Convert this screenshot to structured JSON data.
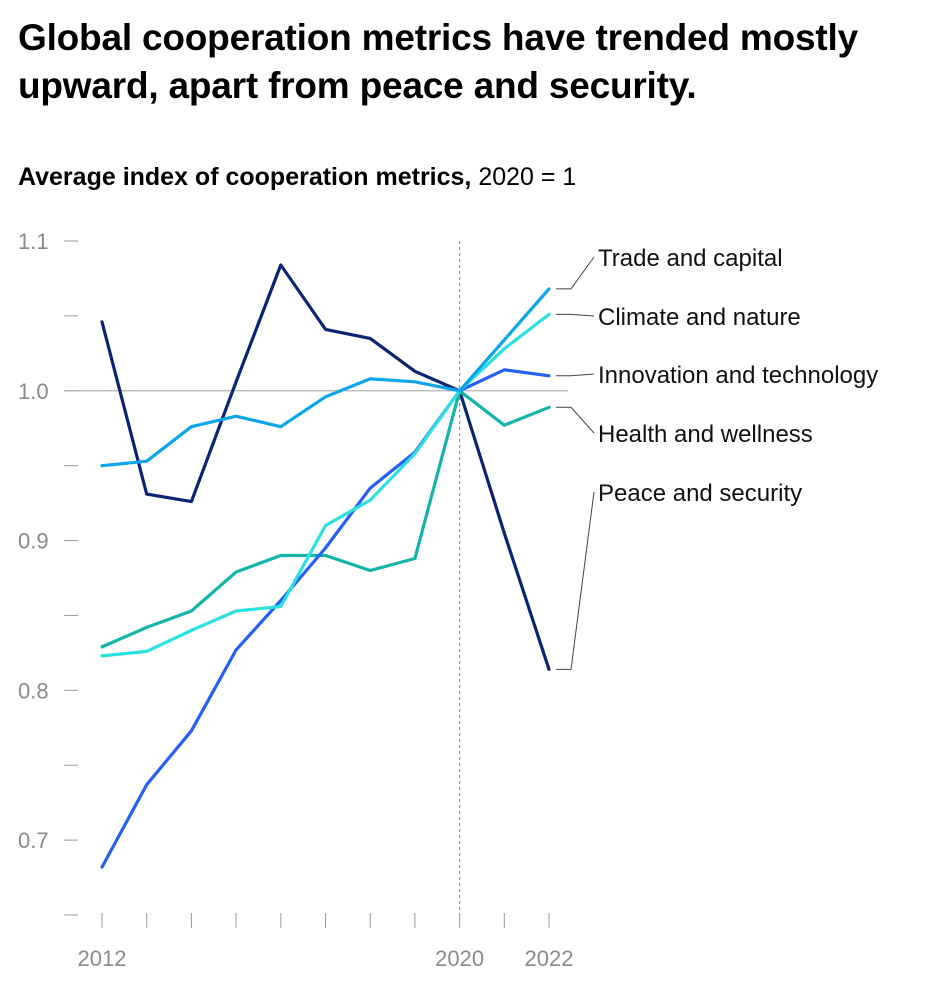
{
  "title": "Global cooperation metrics have trended mostly upward, apart from peace and security.",
  "subtitle": {
    "strong": "Average index of cooperation metrics,",
    "unit": "2020 = 1"
  },
  "chart_data": {
    "type": "line",
    "title": "Global cooperation metrics have trended mostly upward, apart from peace and security.",
    "ylabel": "Average index of cooperation metrics, 2020 = 1",
    "x": [
      2012,
      2013,
      2014,
      2015,
      2016,
      2017,
      2018,
      2019,
      2020,
      2021,
      2022
    ],
    "xlim": [
      2012,
      2022
    ],
    "ylim": [
      0.65,
      1.1
    ],
    "x_tick_labels": [
      {
        "value": 2012,
        "label": "2012"
      },
      {
        "value": 2020,
        "label": "2020"
      },
      {
        "value": 2022,
        "label": "2022"
      }
    ],
    "y_tick_labels": [
      {
        "value": 1.1,
        "label": "1.1"
      },
      {
        "value": 1.0,
        "label": "1.0"
      },
      {
        "value": 0.9,
        "label": "0.9"
      },
      {
        "value": 0.8,
        "label": "0.8"
      },
      {
        "value": 0.7,
        "label": "0.7"
      }
    ],
    "y_minor_ticks": [
      1.05,
      0.95,
      0.85,
      0.75,
      0.65
    ],
    "reference_line_y": 1.0,
    "reference_line_x": 2020,
    "grid": false,
    "legend": "direct labels at right end of lines",
    "series": [
      {
        "name": "Trade and capital",
        "color": "#0ca5e9",
        "values": [
          0.95,
          0.953,
          0.976,
          0.983,
          0.976,
          0.996,
          1.008,
          1.006,
          1.0,
          1.034,
          1.068
        ]
      },
      {
        "name": "Climate and nature",
        "color": "#2de0e0",
        "values": [
          0.823,
          0.826,
          0.84,
          0.853,
          0.856,
          0.91,
          0.927,
          0.958,
          1.0,
          1.028,
          1.051
        ]
      },
      {
        "name": "Innovation and technology",
        "color": "#2660f0",
        "values": [
          0.682,
          0.737,
          0.773,
          0.827,
          0.86,
          0.895,
          0.935,
          0.959,
          1.0,
          1.014,
          1.01
        ]
      },
      {
        "name": "Health and wellness",
        "color": "#14b5a8",
        "values": [
          0.829,
          0.842,
          0.853,
          0.879,
          0.89,
          0.89,
          0.88,
          0.888,
          1.0,
          0.977,
          0.989
        ]
      },
      {
        "name": "Peace and security",
        "color": "#0a2472",
        "values": [
          1.046,
          0.931,
          0.926,
          1.006,
          1.084,
          1.041,
          1.035,
          1.013,
          1.0,
          0.905,
          0.814
        ]
      }
    ]
  }
}
